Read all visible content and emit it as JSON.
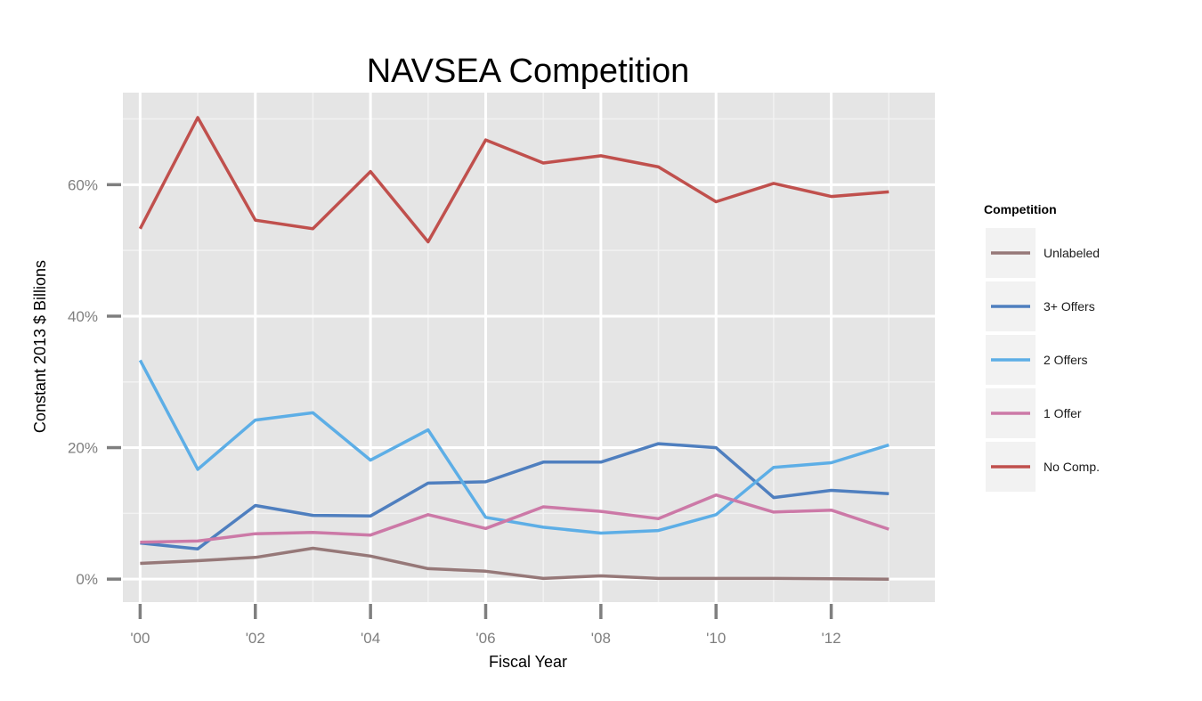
{
  "chart_data": {
    "type": "line",
    "title": "NAVSEA Competition",
    "xlabel": "Fiscal Year",
    "ylabel": "Constant 2013 $ Billions",
    "x": [
      2000,
      2001,
      2002,
      2003,
      2004,
      2005,
      2006,
      2007,
      2008,
      2009,
      2010,
      2011,
      2012,
      2013
    ],
    "xlim": [
      1999.7,
      2013.8
    ],
    "ylim": [
      -3.5,
      74
    ],
    "x_ticks": [
      2000,
      2002,
      2004,
      2006,
      2008,
      2010,
      2012
    ],
    "x_tick_labels": [
      "'00",
      "'02",
      "'04",
      "'06",
      "'08",
      "'10",
      "'12"
    ],
    "y_ticks": [
      0,
      20,
      40,
      60
    ],
    "y_tick_labels": [
      "0%",
      "20%",
      "40%",
      "60%"
    ],
    "grid": true,
    "background_color": "#e5e5e5",
    "legend": {
      "title": "Competition",
      "position": "right"
    },
    "series": [
      {
        "name": "Unlabeled",
        "color": "#967878",
        "values": [
          2.4,
          2.8,
          3.3,
          4.7,
          3.5,
          1.6,
          1.2,
          0.1,
          0.5,
          0.1,
          0.1,
          0.1,
          0.05,
          0.0
        ]
      },
      {
        "name": "3+ Offers",
        "color": "#4f7fbf",
        "values": [
          5.5,
          4.6,
          11.2,
          9.7,
          9.6,
          14.6,
          14.8,
          17.8,
          17.8,
          20.6,
          20.0,
          12.4,
          13.5,
          13.0
        ]
      },
      {
        "name": "2 Offers",
        "color": "#5daee6",
        "values": [
          33.3,
          16.7,
          24.2,
          25.3,
          18.1,
          22.7,
          9.4,
          7.9,
          7.0,
          7.4,
          9.8,
          17.0,
          17.7,
          20.4
        ]
      },
      {
        "name": "1 Offer",
        "color": "#cc79a7",
        "values": [
          5.6,
          5.8,
          6.9,
          7.1,
          6.7,
          9.8,
          7.7,
          11.0,
          10.3,
          9.2,
          12.8,
          10.2,
          10.5,
          7.6
        ]
      },
      {
        "name": "No Comp.",
        "color": "#c0504d",
        "values": [
          53.3,
          70.2,
          54.6,
          53.3,
          62.0,
          51.3,
          66.8,
          63.3,
          64.4,
          62.7,
          57.4,
          60.2,
          58.2,
          58.9
        ]
      }
    ]
  }
}
